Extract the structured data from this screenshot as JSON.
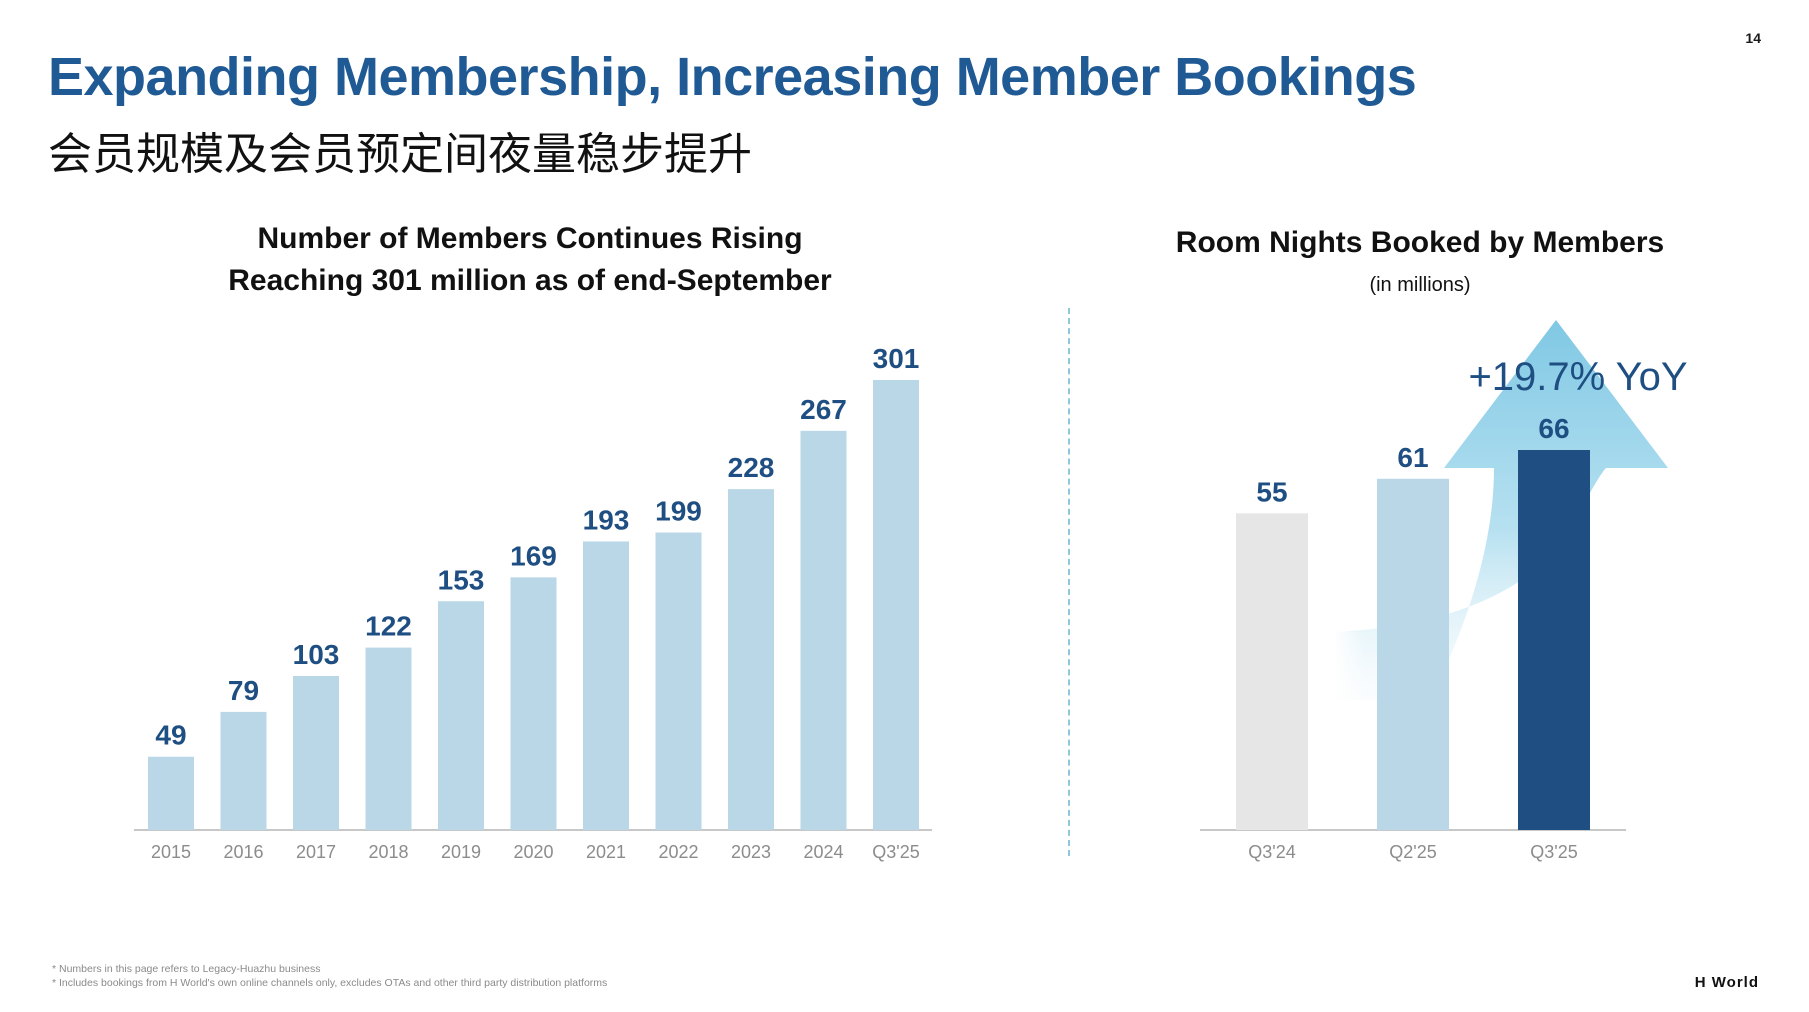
{
  "page_number": "14",
  "title_en": "Expanding Membership, Increasing Member Bookings",
  "title_zh": "会员规模及会员预定间夜量稳步提升",
  "colors": {
    "title": "#1f5a95",
    "bar_light": "#b9d7e7",
    "bar_grey": "#e6e6e6",
    "bar_dark": "#1f4f82",
    "label": "#1f4f82",
    "arrow": "#7fc8e4"
  },
  "chart_data": [
    {
      "type": "bar",
      "title": "Number of Members Continues Rising",
      "subtitle": "Reaching 301 million as of end-September",
      "categories": [
        "2015",
        "2016",
        "2017",
        "2018",
        "2019",
        "2020",
        "2021",
        "2022",
        "2023",
        "2024",
        "Q3'25"
      ],
      "values": [
        49,
        79,
        103,
        122,
        153,
        169,
        193,
        199,
        228,
        267,
        301
      ],
      "value_labels": [
        "49",
        "79",
        "103",
        "122",
        "153",
        "169",
        "193",
        "199",
        "228",
        "267",
        "301"
      ],
      "xlabel": "",
      "ylabel": "",
      "ylim": [
        0,
        301
      ],
      "grid": false
    },
    {
      "type": "bar",
      "title": "Room Nights Booked by Members",
      "subtitle": "(in millions)",
      "categories": [
        "Q3'24",
        "Q2'25",
        "Q3'25"
      ],
      "values": [
        55,
        61,
        66
      ],
      "value_labels": [
        "55",
        "61",
        "66"
      ],
      "bar_colors": [
        "#e6e6e6",
        "#b9d7e7",
        "#1f4f82"
      ],
      "annotation": "+19.7% YoY",
      "xlabel": "",
      "ylabel": "",
      "ylim": [
        0,
        66
      ],
      "grid": false
    }
  ],
  "footnotes": [
    "* Numbers in this page refers to Legacy-Huazhu business",
    "* Includes bookings from H World's own online channels only, excludes OTAs and other third party distribution platforms"
  ],
  "brand": "H World"
}
